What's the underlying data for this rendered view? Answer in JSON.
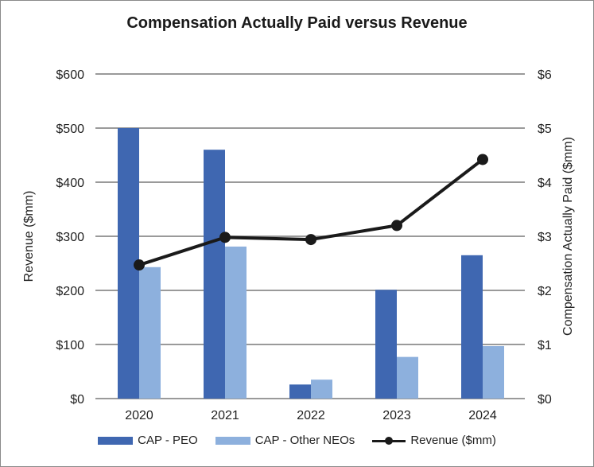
{
  "chart_data": {
    "type": "bar+line",
    "title": "Compensation Actually Paid versus Revenue",
    "categories": [
      "2020",
      "2021",
      "2022",
      "2023",
      "2024"
    ],
    "y_left": {
      "label": "Revenue ($mm)",
      "lim": [
        0,
        600
      ],
      "ticks": [
        "$0",
        "$100",
        "$200",
        "$300",
        "$400",
        "$500",
        "$600"
      ]
    },
    "y_right": {
      "label": "Compensation Actually Paid ($mm)",
      "lim": [
        0,
        6
      ],
      "ticks": [
        "$0",
        "$1",
        "$2",
        "$3",
        "$4",
        "$5",
        "$6"
      ]
    },
    "grid": true,
    "legend_position": "bottom",
    "series": [
      {
        "name": "CAP - PEO",
        "type": "bar",
        "axis": "right",
        "color": "#3f67b1",
        "values": [
          5.0,
          4.6,
          0.26,
          2.01,
          2.65
        ]
      },
      {
        "name": "CAP - Other NEOs",
        "type": "bar",
        "axis": "right",
        "color": "#8db0dd",
        "values": [
          2.43,
          2.81,
          0.35,
          0.77,
          0.97
        ]
      },
      {
        "name": "Revenue ($mm)",
        "type": "line",
        "axis": "left",
        "color": "#1a1a1a",
        "values": [
          247,
          298,
          294,
          320,
          442
        ]
      }
    ]
  }
}
